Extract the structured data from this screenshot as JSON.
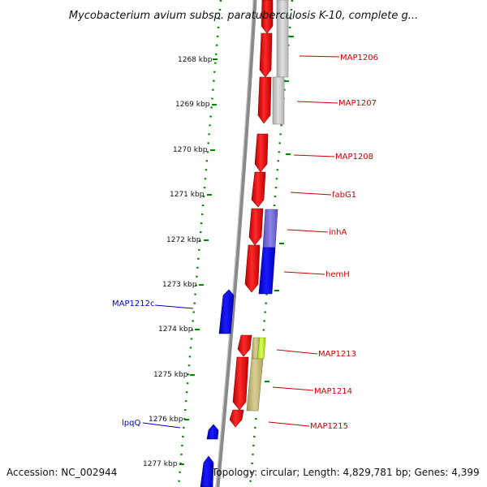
{
  "title": "Mycobacterium avium subsp. paratuberculosis K-10, complete g...",
  "footer": {
    "accession": "Accession: NC_002944",
    "topology": "Topology: circular; Length: 4,829,781 bp; Genes: 4,399"
  },
  "ticks": [
    "1268 kbp",
    "1269 kbp",
    "1270 kbp",
    "1271 kbp",
    "1272 kbp",
    "1273 kbp",
    "1274 kbp",
    "1275 kbp",
    "1276 kbp",
    "1277 kbp"
  ],
  "gene_labels_right": [
    "MAP1206",
    "MAP1207",
    "MAP1208",
    "fabG1",
    "inhA",
    "hemH",
    "MAP1213",
    "MAP1214",
    "MAP1215"
  ],
  "gene_labels_left": [
    "MAP1212c",
    "lpqQ"
  ],
  "colors": {
    "forward_gene": "#ff0000",
    "reverse_gene": "#0000ff",
    "backbone": "#888888",
    "dotted_ring": "#008800"
  }
}
